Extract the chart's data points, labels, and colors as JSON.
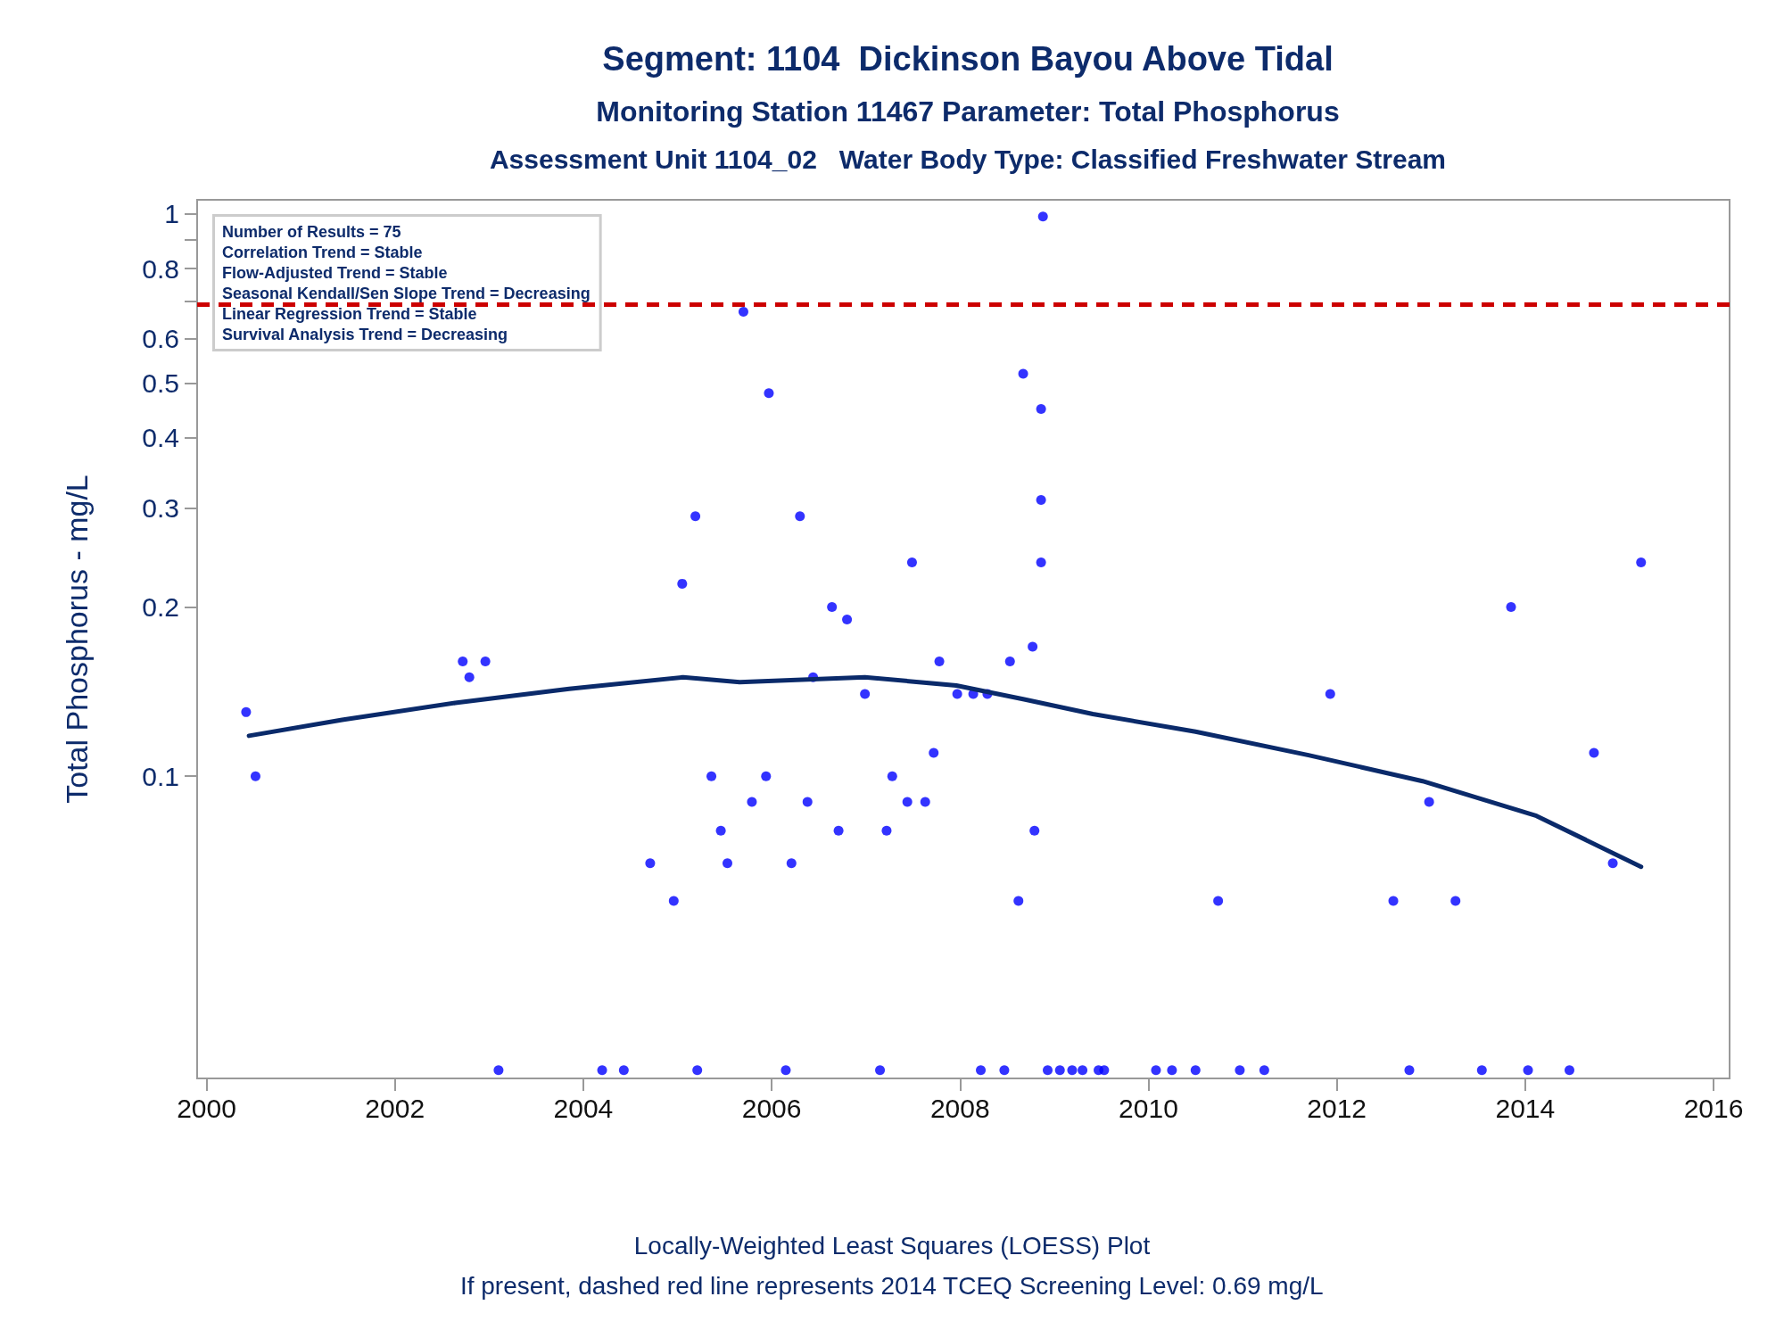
{
  "chart_data": {
    "type": "scatter",
    "title": "Segment: 1104  Dickinson Bayou Above Tidal",
    "subtitle": "Monitoring Station 11467 Parameter: Total Phosphorus\nAssessment Unit 1104_02   Water Body Type: Classified Freshwater Stream",
    "ylabel": "Total Phosphorus - mg/L",
    "annotations": [
      "Number of Results = 75\nCorrelation Trend = Stable\nFlow-Adjusted Trend = Stable\nSeasonal Kendall/Sen Slope Trend = Decreasing\nLinear Regression Trend = Stable\nSurvival Analysis Trend = Decreasing",
      "Locally-Weighted Least Squares (LOESS) Plot",
      "If present, dashed red line represents 2014 TCEQ Screening Level: 0.69 mg/L"
    ],
    "log": "y",
    "grid": false,
    "xlim": [
      1999.9,
      2016.17
    ],
    "xticks": [
      2000,
      2002,
      2004,
      2006,
      2008,
      2010,
      2012,
      2014,
      2016
    ],
    "ylim": [
      0.029,
      1.06
    ],
    "yticks": [
      0.1,
      0.2,
      0.3,
      0.4,
      0.5,
      0.6,
      {
        "value": 0.7,
        "label": null
      },
      0.8,
      {
        "value": 0.9,
        "label": null
      },
      1
    ],
    "ref_lines": [
      {
        "axis": "y",
        "value": 0.69,
        "color": "#cc0000",
        "line_style": "dashed"
      }
    ],
    "series": [
      {
        "type": "scatter",
        "color": "#0000ff",
        "marker": "circle",
        "x": [
          2000.42,
          2000.52,
          2002.72,
          2002.79,
          2002.96,
          2003.1,
          2004.2,
          2004.43,
          2004.71,
          2004.96,
          2005.05,
          2005.19,
          2005.21,
          2005.36,
          2005.46,
          2005.53,
          2005.7,
          2005.79,
          2005.94,
          2005.97,
          2006.15,
          2006.21,
          2006.3,
          2006.38,
          2006.44,
          2006.64,
          2006.71,
          2006.8,
          2006.99,
          2007.15,
          2007.22,
          2007.28,
          2007.44,
          2007.49,
          2007.63,
          2007.72,
          2007.78,
          2007.97,
          2008.14,
          2008.22,
          2008.29,
          2008.47,
          2008.53,
          2008.62,
          2008.67,
          2008.77,
          2008.79,
          2008.86,
          2008.86,
          2008.86,
          2008.88,
          2008.93,
          2009.06,
          2009.19,
          2009.3,
          2009.47,
          2009.53,
          2010.08,
          2010.25,
          2010.5,
          2010.74,
          2010.97,
          2011.23,
          2011.93,
          2012.6,
          2012.77,
          2012.98,
          2013.26,
          2013.54,
          2013.85,
          2014.03,
          2014.47,
          2014.73,
          2014.93,
          2015.23
        ],
        "values": [
          0.13,
          0.1,
          0.16,
          0.15,
          0.16,
          0.03,
          0.03,
          0.03,
          0.07,
          0.06,
          0.22,
          0.29,
          0.03,
          0.1,
          0.08,
          0.07,
          0.67,
          0.09,
          0.1,
          0.48,
          0.03,
          0.07,
          0.29,
          0.09,
          0.15,
          0.2,
          0.08,
          0.19,
          0.14,
          0.03,
          0.08,
          0.1,
          0.09,
          0.24,
          0.09,
          0.11,
          0.16,
          0.14,
          0.14,
          0.03,
          0.14,
          0.03,
          0.16,
          0.06,
          0.52,
          0.17,
          0.08,
          0.31,
          0.45,
          0.24,
          0.99,
          0.03,
          0.03,
          0.03,
          0.03,
          0.03,
          0.03,
          0.03,
          0.03,
          0.03,
          0.06,
          0.03,
          0.03,
          0.14,
          0.06,
          0.03,
          0.09,
          0.06,
          0.03,
          0.2,
          0.03,
          0.03,
          0.11,
          0.07,
          0.24
        ]
      },
      {
        "type": "line",
        "color": "#0a2a6a",
        "marker": "none",
        "line_style": "solid",
        "x": [
          2000.45,
          2001.44,
          2002.64,
          2003.85,
          2005.06,
          2005.66,
          2006.99,
          2007.96,
          2008.68,
          2009.41,
          2010.5,
          2011.7,
          2012.91,
          2014.12,
          2015.23
        ],
        "values": [
          0.118,
          0.126,
          0.135,
          0.143,
          0.15,
          0.147,
          0.15,
          0.145,
          0.137,
          0.129,
          0.12,
          0.109,
          0.098,
          0.085,
          0.069
        ]
      }
    ]
  }
}
